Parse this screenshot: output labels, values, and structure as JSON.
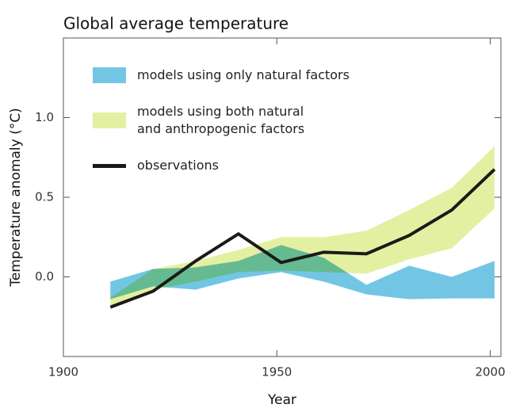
{
  "chart_data": {
    "type": "line",
    "title": "Global average temperature",
    "x_label": "Year",
    "y_label": "Temperature anomaly (°C)",
    "x": [
      1911,
      1921,
      1931,
      1941,
      1951,
      1961,
      1971,
      1981,
      1991,
      2001
    ],
    "series": [
      {
        "name": "models using only natural factors",
        "type": "band",
        "color": "#72c6e4",
        "low": [
          -0.14,
          -0.06,
          -0.08,
          -0.01,
          0.03,
          -0.03,
          -0.11,
          -0.14,
          -0.135,
          -0.135
        ],
        "high": [
          -0.03,
          0.05,
          0.06,
          0.1,
          0.2,
          0.12,
          -0.05,
          0.07,
          0.0,
          0.1
        ]
      },
      {
        "name": "models using both natural and anthropogenic factors",
        "type": "band",
        "color": "#e3f0a2",
        "low": [
          -0.18,
          -0.08,
          -0.03,
          0.03,
          0.04,
          0.03,
          0.02,
          0.11,
          0.18,
          0.43
        ],
        "high": [
          -0.13,
          0.05,
          0.1,
          0.17,
          0.25,
          0.25,
          0.29,
          0.42,
          0.56,
          0.82
        ]
      },
      {
        "name": "observations",
        "type": "line",
        "color": "#1a1a1a",
        "values": [
          -0.19,
          -0.09,
          0.1,
          0.27,
          0.09,
          0.155,
          0.145,
          0.26,
          0.42,
          0.675
        ]
      }
    ],
    "xlim": [
      1900,
      2002.5
    ],
    "xticks": [
      1900,
      1950,
      2000
    ],
    "ylim": [
      -0.5,
      1.5
    ],
    "yticks": [
      {
        "value": 0,
        "label": "0.0"
      },
      0.5,
      {
        "value": 1,
        "label": "1.0"
      }
    ],
    "legend": "upper left"
  }
}
